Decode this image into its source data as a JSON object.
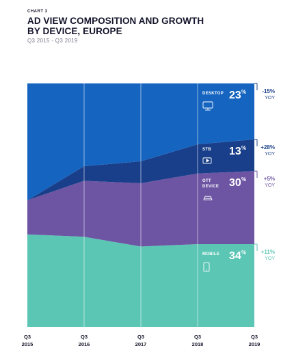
{
  "header": {
    "eyebrow": "CHART 3",
    "title": "AD VIEW COMPOSITION AND GROWTH BY DEVICE, EUROPE",
    "subtitle": "Q3 2015 - Q3 2019"
  },
  "colors": {
    "desktop": "#1565c0",
    "stb": "#1a3f8a",
    "ott": "#6d55a3",
    "mobile": "#5cc6b5",
    "yoy_desktop": "#1a3f8a",
    "yoy_stb": "#1a3f8a",
    "yoy_ott": "#6d55a3",
    "yoy_mobile": "#5cc6b5"
  },
  "chart_data": {
    "type": "area",
    "stacked": true,
    "normalized": true,
    "x": [
      "Q3 2015",
      "Q3 2016",
      "Q3 2017",
      "Q3 2018",
      "Q3 2019"
    ],
    "x_labels": [
      [
        "Q3",
        "2015"
      ],
      [
        "Q3",
        "2016"
      ],
      [
        "Q3",
        "2017"
      ],
      [
        "Q3",
        "2018"
      ],
      [
        "Q3",
        "2019"
      ]
    ],
    "ylim": [
      0,
      100
    ],
    "series": [
      {
        "key": "mobile",
        "name": "MOBILE",
        "icon": "smartphone-icon",
        "values": [
          38,
          37,
          33,
          34,
          34
        ],
        "share_label": "34",
        "yoy": "+11",
        "yoy_label": "YOY"
      },
      {
        "key": "ott",
        "name": "OTT DEVICE",
        "icon": "game-console-icon",
        "values": [
          14,
          23,
          26,
          29,
          30
        ],
        "share_label": "30",
        "yoy": "+5",
        "yoy_label": "YOY"
      },
      {
        "key": "stb",
        "name": "STB",
        "icon": "set-top-box-icon",
        "values": [
          0,
          6,
          9,
          12,
          13
        ],
        "share_label": "13",
        "yoy": "+28",
        "yoy_label": "YOY"
      },
      {
        "key": "desktop",
        "name": "DESKTOP",
        "icon": "monitor-icon",
        "values": [
          48,
          34,
          32,
          25,
          23
        ],
        "share_label": "23",
        "yoy": "-15",
        "yoy_label": "YOY"
      }
    ]
  }
}
